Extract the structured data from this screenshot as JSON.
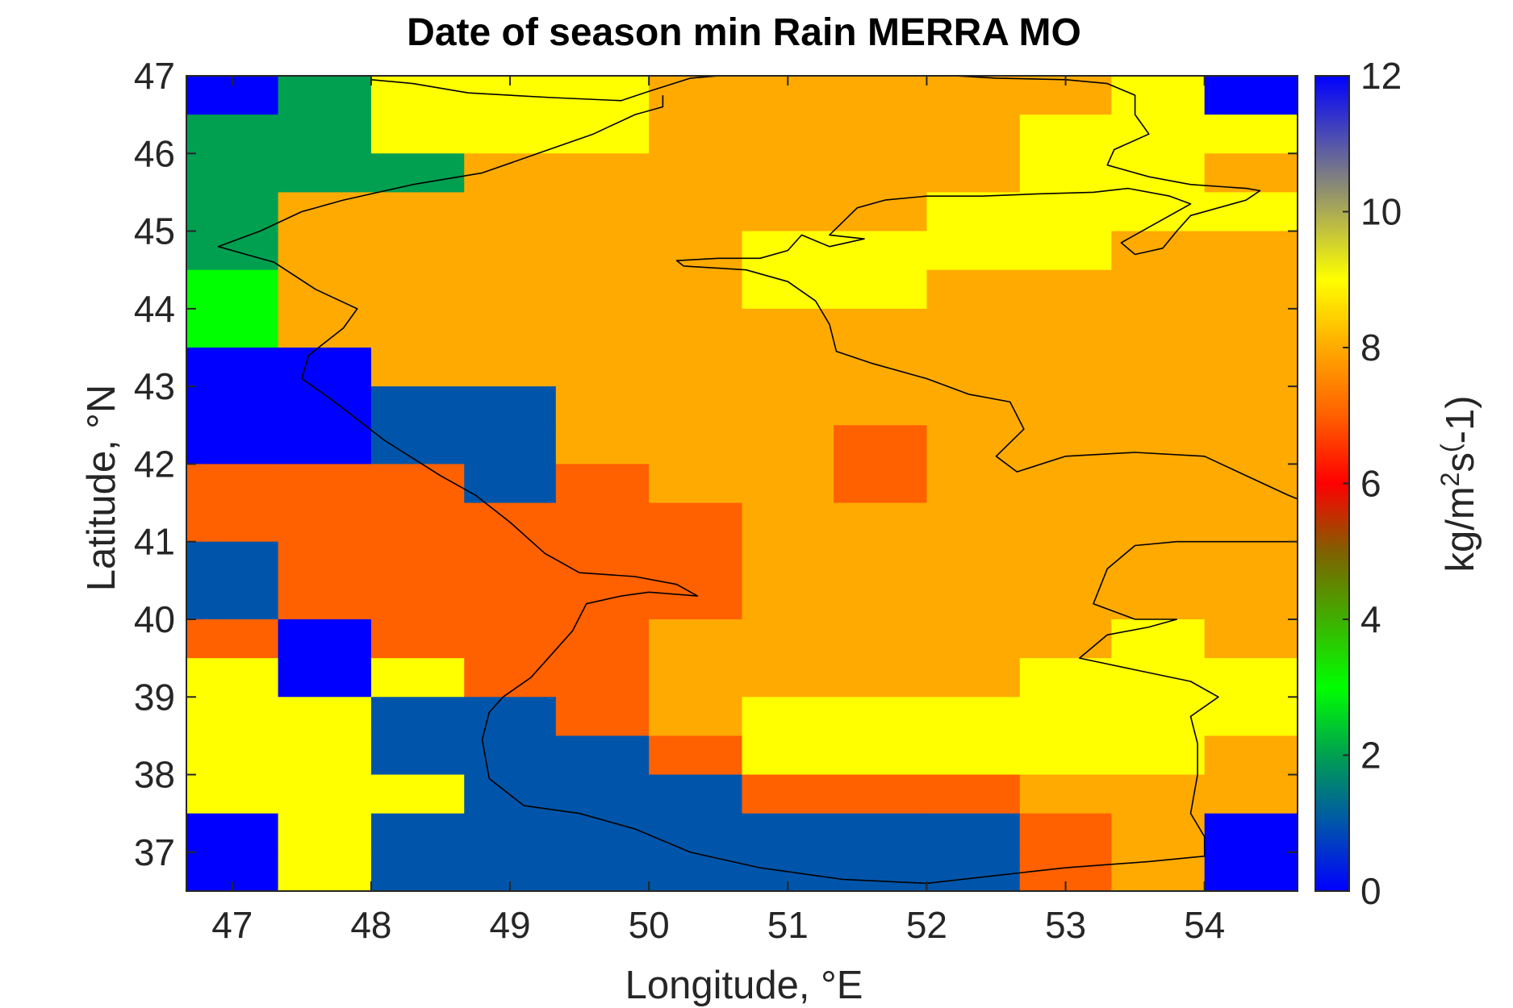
{
  "chart_data": {
    "type": "heatmap",
    "title": "Date of season min Rain MERRA MO",
    "xlabel": "Longitude, °E",
    "ylabel": "Latitude, °N",
    "colorbar_label": "kg/m^2s^(-1)",
    "colorbar_label_parts": {
      "a": "kg/m",
      "b": "2",
      "c": "s",
      "d": "(",
      "e": "-1)"
    },
    "xlim": [
      46.67,
      54.67
    ],
    "ylim": [
      36.5,
      47.0
    ],
    "clim": [
      0,
      12
    ],
    "x_ticks": [
      47,
      48,
      49,
      50,
      51,
      52,
      53,
      54
    ],
    "y_ticks": [
      37,
      38,
      39,
      40,
      41,
      42,
      43,
      44,
      45,
      46,
      47
    ],
    "colorbar_ticks": [
      0,
      2,
      4,
      6,
      8,
      10,
      12
    ],
    "x_tick_labels": [
      "47",
      "48",
      "49",
      "50",
      "51",
      "52",
      "53",
      "54"
    ],
    "y_tick_labels": [
      "37",
      "38",
      "39",
      "40",
      "41",
      "42",
      "43",
      "44",
      "45",
      "46",
      "47"
    ],
    "colorbar_tick_labels": [
      "0",
      "2",
      "4",
      "6",
      "8",
      "10",
      "12"
    ],
    "grid": false,
    "colormap_stops": [
      {
        "v": 0,
        "color": "#0000ff"
      },
      {
        "v": 1.0,
        "color": "#0055aa"
      },
      {
        "v": 2.0,
        "color": "#00a050"
      },
      {
        "v": 3.0,
        "color": "#00ff00"
      },
      {
        "v": 5.0,
        "color": "#806000"
      },
      {
        "v": 6.0,
        "color": "#ff0000"
      },
      {
        "v": 7.0,
        "color": "#ff6000"
      },
      {
        "v": 8.0,
        "color": "#ffaa00"
      },
      {
        "v": 9.0,
        "color": "#ffff00"
      },
      {
        "v": 10.5,
        "color": "#808080"
      },
      {
        "v": 12,
        "color": "#0000ff"
      }
    ],
    "grid_x_edges": [
      46.67,
      47.33,
      48.0,
      48.67,
      49.33,
      50.0,
      50.67,
      51.33,
      52.0,
      52.67,
      53.33,
      54.0,
      54.67
    ],
    "grid_y_edges": [
      36.5,
      37.0,
      37.5,
      38.0,
      38.5,
      39.0,
      39.5,
      40.0,
      40.5,
      41.0,
      41.5,
      42.0,
      42.5,
      43.0,
      43.5,
      44.0,
      44.5,
      45.0,
      45.5,
      46.0,
      46.5,
      47.0
    ],
    "z_rows_north_to_south": [
      [
        0,
        2,
        9,
        9,
        9,
        8,
        8,
        8,
        8,
        8,
        9,
        0
      ],
      [
        2,
        2,
        9,
        9,
        9,
        8,
        8,
        8,
        8,
        9,
        9,
        9
      ],
      [
        2,
        2,
        2,
        8,
        8,
        8,
        8,
        8,
        8,
        9,
        9,
        8
      ],
      [
        2,
        8,
        8,
        8,
        8,
        8,
        8,
        8,
        9,
        9,
        9,
        9
      ],
      [
        2,
        8,
        8,
        8,
        8,
        8,
        9,
        9,
        9,
        9,
        8,
        8
      ],
      [
        3,
        8,
        8,
        8,
        8,
        8,
        9,
        9,
        8,
        8,
        8,
        8
      ],
      [
        3,
        8,
        8,
        8,
        8,
        8,
        8,
        8,
        8,
        8,
        8,
        8
      ],
      [
        0,
        0,
        8,
        8,
        8,
        8,
        8,
        8,
        8,
        8,
        8,
        8
      ],
      [
        0,
        0,
        1,
        1,
        8,
        8,
        8,
        8,
        8,
        8,
        8,
        8
      ],
      [
        0,
        0,
        1,
        1,
        8,
        8,
        8,
        7,
        8,
        8,
        8,
        8
      ],
      [
        7,
        7,
        7,
        1,
        7,
        8,
        8,
        7,
        8,
        8,
        8,
        8
      ],
      [
        7,
        7,
        7,
        7,
        7,
        7,
        8,
        8,
        8,
        8,
        8,
        8
      ],
      [
        1,
        7,
        7,
        7,
        7,
        7,
        8,
        8,
        8,
        8,
        8,
        8
      ],
      [
        1,
        7,
        7,
        7,
        7,
        7,
        8,
        8,
        8,
        8,
        8,
        8
      ],
      [
        7,
        0,
        7,
        7,
        7,
        8,
        8,
        8,
        8,
        8,
        9,
        8
      ],
      [
        9,
        0,
        9,
        7,
        7,
        8,
        8,
        8,
        8,
        9,
        9,
        9
      ],
      [
        9,
        9,
        1,
        1,
        7,
        8,
        9,
        9,
        9,
        9,
        9,
        9
      ],
      [
        9,
        9,
        1,
        1,
        1,
        7,
        9,
        9,
        9,
        9,
        9,
        8
      ],
      [
        9,
        9,
        9,
        1,
        1,
        1,
        7,
        7,
        7,
        8,
        8,
        8
      ],
      [
        0,
        9,
        1,
        1,
        1,
        1,
        1,
        1,
        1,
        7,
        8,
        0
      ],
      [
        0,
        9,
        1,
        1,
        1,
        1,
        1,
        1,
        1,
        7,
        8,
        0
      ]
    ],
    "coastline_paths": [
      [
        [
          48.0,
          46.95
        ],
        [
          48.3,
          46.9
        ],
        [
          48.7,
          46.78
        ],
        [
          49.3,
          46.72
        ],
        [
          49.8,
          46.68
        ],
        [
          50.0,
          46.8
        ],
        [
          50.3,
          46.97
        ],
        [
          50.5,
          47.0
        ],
        [
          51.5,
          47.0
        ],
        [
          52.2,
          47.0
        ],
        [
          52.5,
          46.97
        ],
        [
          53.0,
          46.95
        ],
        [
          53.3,
          46.9
        ],
        [
          53.5,
          46.75
        ],
        [
          53.5,
          46.5
        ],
        [
          53.6,
          46.25
        ],
        [
          53.35,
          46.05
        ],
        [
          53.3,
          45.85
        ],
        [
          53.6,
          45.7
        ],
        [
          53.9,
          45.6
        ],
        [
          54.3,
          45.55
        ],
        [
          54.4,
          45.52
        ],
        [
          54.3,
          45.4
        ],
        [
          54.1,
          45.3
        ],
        [
          53.9,
          45.2
        ],
        [
          53.8,
          45.0
        ],
        [
          53.7,
          44.78
        ],
        [
          53.5,
          44.7
        ],
        [
          53.4,
          44.85
        ],
        [
          53.65,
          45.1
        ],
        [
          53.9,
          45.35
        ],
        [
          53.75,
          45.45
        ],
        [
          53.45,
          45.55
        ],
        [
          53.2,
          45.5
        ],
        [
          52.8,
          45.48
        ],
        [
          52.4,
          45.45
        ],
        [
          52.0,
          45.45
        ],
        [
          51.7,
          45.4
        ],
        [
          51.5,
          45.3
        ],
        [
          51.3,
          44.95
        ],
        [
          51.55,
          44.9
        ],
        [
          51.3,
          44.8
        ],
        [
          51.1,
          44.95
        ],
        [
          51.0,
          44.75
        ],
        [
          50.8,
          44.65
        ],
        [
          50.5,
          44.65
        ],
        [
          50.2,
          44.62
        ],
        [
          50.25,
          44.55
        ],
        [
          50.7,
          44.5
        ],
        [
          51.0,
          44.35
        ],
        [
          51.2,
          44.1
        ],
        [
          51.3,
          43.8
        ],
        [
          51.35,
          43.45
        ],
        [
          51.6,
          43.3
        ],
        [
          52.0,
          43.1
        ],
        [
          52.3,
          42.9
        ],
        [
          52.6,
          42.8
        ],
        [
          52.7,
          42.45
        ],
        [
          52.5,
          42.1
        ],
        [
          52.65,
          41.9
        ],
        [
          53.0,
          42.1
        ],
        [
          53.5,
          42.15
        ],
        [
          54.0,
          42.1
        ],
        [
          54.3,
          41.85
        ],
        [
          54.6,
          41.6
        ],
        [
          54.67,
          41.55
        ]
      ],
      [
        [
          54.67,
          41.0
        ],
        [
          54.3,
          41.0
        ],
        [
          53.8,
          41.0
        ],
        [
          53.5,
          40.95
        ],
        [
          53.3,
          40.65
        ],
        [
          53.2,
          40.2
        ],
        [
          53.5,
          40.0
        ],
        [
          53.8,
          40.0
        ],
        [
          53.6,
          39.9
        ],
        [
          53.3,
          39.8
        ],
        [
          53.1,
          39.5
        ],
        [
          53.5,
          39.35
        ],
        [
          53.9,
          39.2
        ],
        [
          54.1,
          39.0
        ],
        [
          53.9,
          38.75
        ],
        [
          53.95,
          38.4
        ],
        [
          53.95,
          38.0
        ],
        [
          53.9,
          37.5
        ],
        [
          54.0,
          37.2
        ],
        [
          54.0,
          36.95
        ],
        [
          53.6,
          36.88
        ],
        [
          53.0,
          36.8
        ],
        [
          52.5,
          36.7
        ],
        [
          52.0,
          36.6
        ],
        [
          51.4,
          36.65
        ],
        [
          50.8,
          36.8
        ],
        [
          50.3,
          37.0
        ],
        [
          49.9,
          37.3
        ],
        [
          49.5,
          37.5
        ],
        [
          49.1,
          37.6
        ],
        [
          48.85,
          37.95
        ],
        [
          48.8,
          38.45
        ],
        [
          48.85,
          38.8
        ],
        [
          48.95,
          39.0
        ],
        [
          49.15,
          39.25
        ],
        [
          49.3,
          39.55
        ],
        [
          49.45,
          39.85
        ],
        [
          49.55,
          40.2
        ],
        [
          49.8,
          40.3
        ],
        [
          50.0,
          40.35
        ],
        [
          50.35,
          40.3
        ],
        [
          50.2,
          40.45
        ],
        [
          49.9,
          40.55
        ],
        [
          49.5,
          40.6
        ],
        [
          49.25,
          40.85
        ],
        [
          49.0,
          41.25
        ],
        [
          48.75,
          41.6
        ],
        [
          48.5,
          41.85
        ],
        [
          48.1,
          42.3
        ],
        [
          47.7,
          42.85
        ],
        [
          47.5,
          43.1
        ],
        [
          47.55,
          43.4
        ],
        [
          47.8,
          43.75
        ],
        [
          47.9,
          44.0
        ],
        [
          47.6,
          44.25
        ],
        [
          47.3,
          44.6
        ],
        [
          47.1,
          44.7
        ],
        [
          46.9,
          44.8
        ],
        [
          47.2,
          45.0
        ],
        [
          47.5,
          45.25
        ],
        [
          47.8,
          45.4
        ],
        [
          48.3,
          45.6
        ],
        [
          48.8,
          45.75
        ],
        [
          49.2,
          46.0
        ],
        [
          49.6,
          46.25
        ],
        [
          49.9,
          46.5
        ],
        [
          50.1,
          46.6
        ],
        [
          50.1,
          46.75
        ]
      ]
    ]
  }
}
